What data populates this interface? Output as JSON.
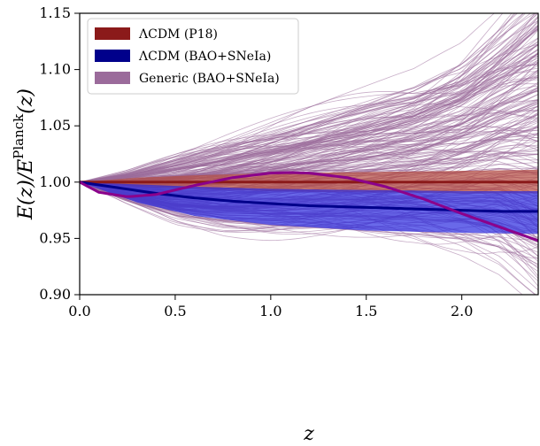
{
  "chart_data": {
    "type": "line",
    "xlabel": "z",
    "ylabel": "E(z)/E^Planck(z)",
    "xlim": [
      0.0,
      2.4
    ],
    "ylim": [
      0.9,
      1.15
    ],
    "x_ticks": [
      "0.0",
      "0.5",
      "1.0",
      "1.5",
      "2.0"
    ],
    "y_ticks": [
      "0.90",
      "0.95",
      "1.00",
      "1.05",
      "1.10",
      "1.15"
    ],
    "legend_position": "top-left",
    "legend": [
      {
        "label": "ΛCDM (P18)",
        "color": "#8b1a1a"
      },
      {
        "label": "ΛCDM (BAO+SNeIa)",
        "color": "#00008b"
      },
      {
        "label": "Generic (BAO+SNeIa)",
        "color": "#9b6b9b"
      }
    ],
    "bands": [
      {
        "name": "ΛCDM (P18) band",
        "color": "#b44a3e",
        "x": [
          0.0,
          0.3,
          0.6,
          1.0,
          1.5,
          2.0,
          2.4
        ],
        "lower": [
          1.0,
          0.996,
          0.994,
          0.992,
          0.991,
          0.99,
          0.99
        ],
        "upper": [
          1.0,
          1.004,
          1.006,
          1.008,
          1.009,
          1.01,
          1.011
        ]
      },
      {
        "name": "ΛCDM (BAO+SNeIa) band",
        "color": "#2a2ae0",
        "x": [
          0.0,
          0.3,
          0.6,
          1.0,
          1.5,
          2.0,
          2.4
        ],
        "lower": [
          1.0,
          0.982,
          0.97,
          0.962,
          0.957,
          0.955,
          0.954
        ],
        "upper": [
          1.0,
          0.998,
          0.996,
          0.994,
          0.993,
          0.992,
          0.992
        ]
      }
    ],
    "series": [
      {
        "name": "ΛCDM (P18)",
        "color": "#8b1a1a",
        "x": [
          0.0,
          0.6,
          1.2,
          1.8,
          2.4
        ],
        "y": [
          1.0,
          1.0,
          1.0,
          1.0,
          1.0
        ]
      },
      {
        "name": "ΛCDM (BAO+SNeIa)",
        "color": "#00008b",
        "x": [
          0.0,
          0.2,
          0.4,
          0.6,
          0.8,
          1.0,
          1.2,
          1.4,
          1.6,
          1.8,
          2.0,
          2.2,
          2.4
        ],
        "y": [
          1.0,
          0.995,
          0.99,
          0.986,
          0.983,
          0.981,
          0.979,
          0.978,
          0.977,
          0.976,
          0.975,
          0.974,
          0.974
        ]
      },
      {
        "name": "Generic best fit",
        "color": "#8b008b",
        "x": [
          0.0,
          0.1,
          0.25,
          0.4,
          0.6,
          0.8,
          1.0,
          1.1,
          1.2,
          1.4,
          1.6,
          1.8,
          2.0,
          2.2,
          2.4
        ],
        "y": [
          1.0,
          0.991,
          0.987,
          0.989,
          0.997,
          1.004,
          1.008,
          1.0085,
          1.008,
          1.004,
          0.996,
          0.985,
          0.972,
          0.96,
          0.948
        ]
      }
    ],
    "sample_curves": {
      "name": "Generic (BAO+SNeIa)",
      "color": "#9b6b9b",
      "count": 260,
      "spread": {
        "z": [
          0.0,
          0.25,
          0.5,
          0.75,
          1.0,
          1.25,
          1.5,
          1.75,
          2.0,
          2.2,
          2.4
        ],
        "upper": [
          1.0,
          1.012,
          1.028,
          1.043,
          1.057,
          1.071,
          1.085,
          1.1,
          1.125,
          1.16,
          1.2
        ],
        "lower": [
          1.0,
          0.98,
          0.962,
          0.952,
          0.947,
          0.944,
          0.94,
          0.935,
          0.925,
          0.91,
          0.88
        ]
      }
    }
  }
}
